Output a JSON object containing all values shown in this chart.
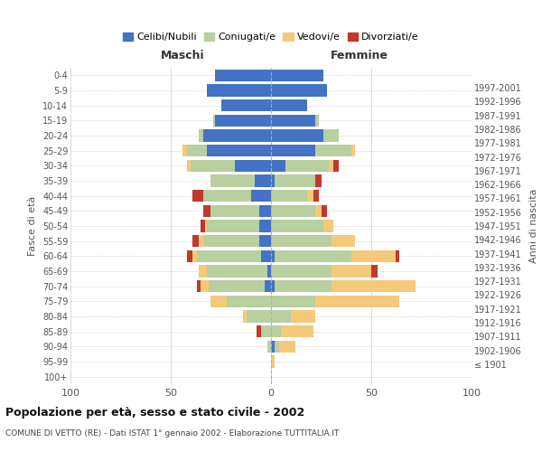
{
  "age_groups": [
    "100+",
    "95-99",
    "90-94",
    "85-89",
    "80-84",
    "75-79",
    "70-74",
    "65-69",
    "60-64",
    "55-59",
    "50-54",
    "45-49",
    "40-44",
    "35-39",
    "30-34",
    "25-29",
    "20-24",
    "15-19",
    "10-14",
    "5-9",
    "0-4"
  ],
  "birth_years": [
    "≤ 1901",
    "1902-1906",
    "1907-1911",
    "1912-1916",
    "1917-1921",
    "1922-1926",
    "1927-1931",
    "1932-1936",
    "1937-1941",
    "1942-1946",
    "1947-1951",
    "1952-1956",
    "1957-1961",
    "1962-1966",
    "1967-1971",
    "1972-1976",
    "1977-1981",
    "1982-1986",
    "1987-1991",
    "1992-1996",
    "1997-2001"
  ],
  "male": {
    "celibi": [
      0,
      0,
      0,
      0,
      0,
      0,
      3,
      2,
      5,
      6,
      6,
      6,
      10,
      8,
      18,
      32,
      34,
      28,
      25,
      32,
      28
    ],
    "coniugati": [
      0,
      0,
      2,
      5,
      12,
      22,
      28,
      30,
      32,
      28,
      26,
      24,
      24,
      22,
      22,
      10,
      2,
      1,
      0,
      0,
      0
    ],
    "vedovi": [
      0,
      0,
      0,
      0,
      2,
      8,
      4,
      4,
      2,
      2,
      1,
      0,
      0,
      0,
      2,
      2,
      0,
      0,
      0,
      0,
      0
    ],
    "divorziati": [
      0,
      0,
      0,
      2,
      0,
      0,
      2,
      0,
      3,
      3,
      2,
      4,
      5,
      0,
      0,
      0,
      0,
      0,
      0,
      0,
      0
    ]
  },
  "female": {
    "nubili": [
      0,
      0,
      2,
      0,
      0,
      0,
      2,
      0,
      2,
      0,
      0,
      0,
      0,
      2,
      7,
      22,
      26,
      22,
      18,
      28,
      26
    ],
    "coniugate": [
      0,
      0,
      2,
      5,
      10,
      22,
      28,
      30,
      38,
      30,
      26,
      22,
      18,
      20,
      22,
      18,
      8,
      2,
      0,
      0,
      0
    ],
    "vedove": [
      0,
      2,
      8,
      16,
      12,
      42,
      42,
      20,
      22,
      12,
      5,
      3,
      3,
      0,
      2,
      2,
      0,
      0,
      0,
      0,
      0
    ],
    "divorziate": [
      0,
      0,
      0,
      0,
      0,
      0,
      0,
      3,
      2,
      0,
      0,
      3,
      3,
      3,
      3,
      0,
      0,
      0,
      0,
      0,
      0
    ]
  },
  "colors": {
    "celibi": "#4472c4",
    "coniugati": "#b8cfa0",
    "vedovi": "#f5c97a",
    "divorziati": "#c0392b"
  },
  "title": "Popolazione per età, sesso e stato civile - 2002",
  "subtitle": "COMUNE DI VETTO (RE) - Dati ISTAT 1° gennaio 2002 - Elaborazione TUTTITALIA.IT",
  "xlabel_left": "Maschi",
  "xlabel_right": "Femmine",
  "ylabel_left": "Fasce di età",
  "ylabel_right": "Anni di nascita",
  "xlim": 100,
  "legend_labels": [
    "Celibi/Nubili",
    "Coniugati/e",
    "Vedovi/e",
    "Divorziati/e"
  ],
  "bg_color": "#ffffff",
  "grid_color": "#cccccc"
}
